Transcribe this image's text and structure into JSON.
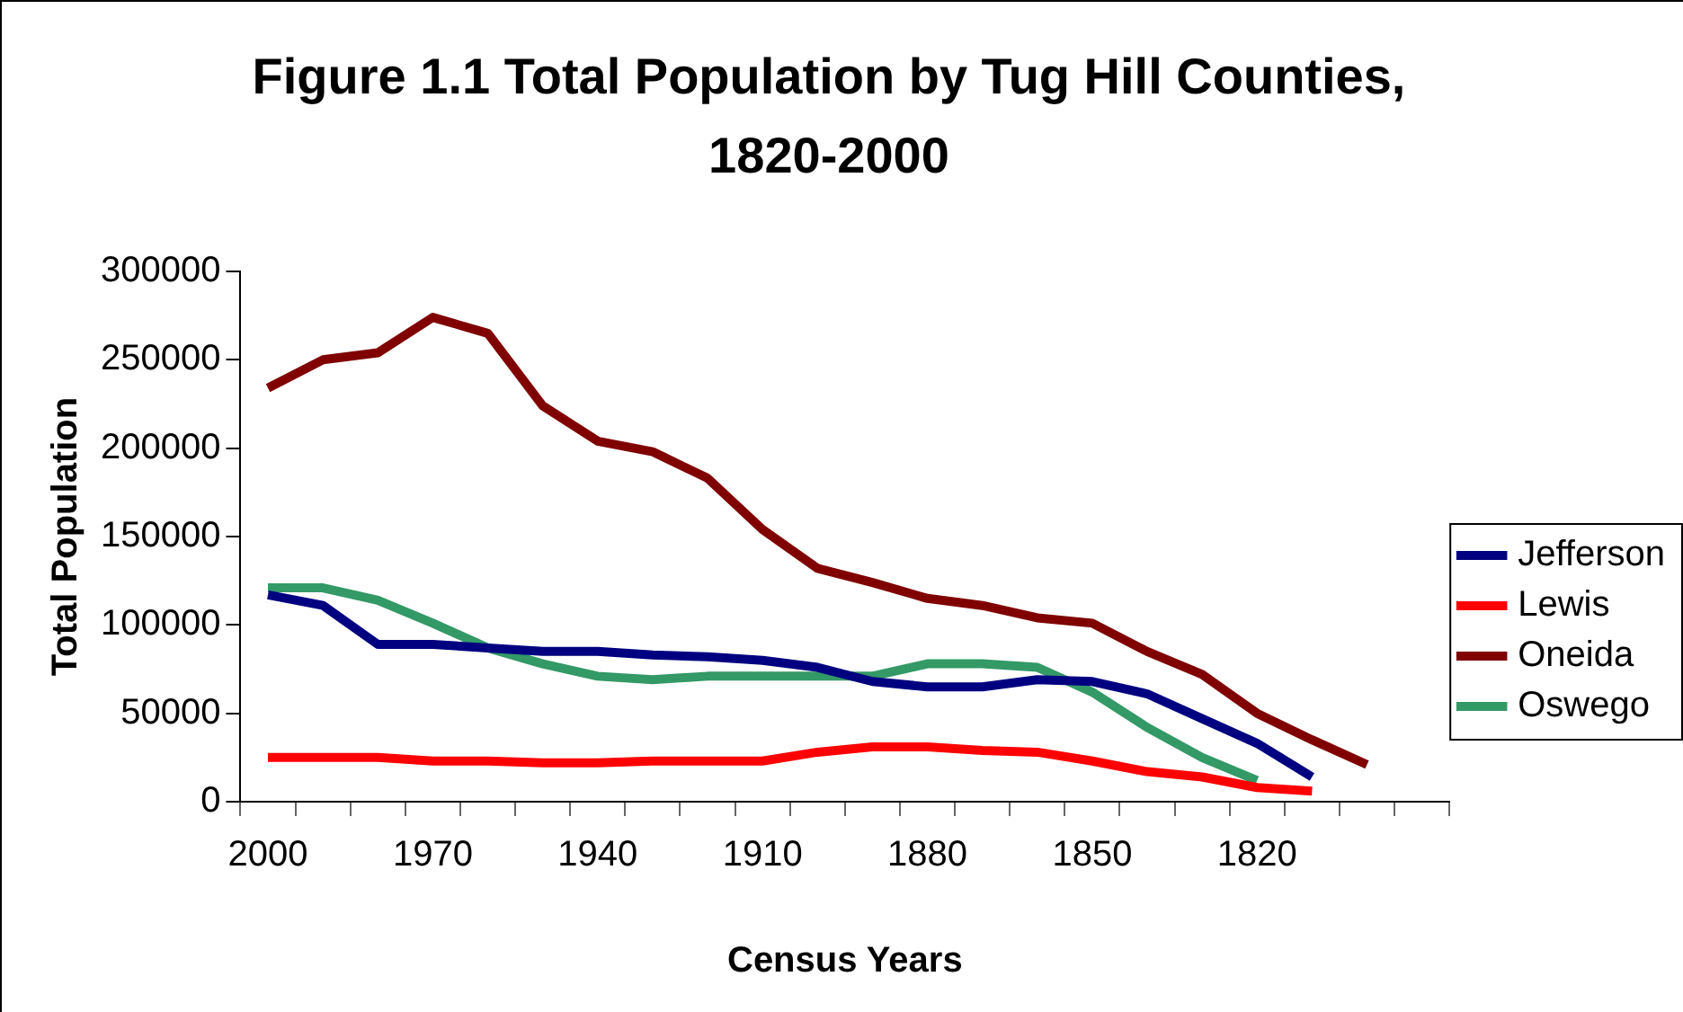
{
  "chart_data": {
    "type": "line",
    "title": "Figure 1.1 Total Population by Tug Hill Counties, 1820-2000",
    "xlabel": "Census Years",
    "ylabel": "Total Population",
    "categories": [
      "2000",
      null,
      null,
      "1970",
      null,
      null,
      "1940",
      null,
      null,
      "1910",
      null,
      null,
      "1880",
      null,
      null,
      "1850",
      null,
      null,
      "1820",
      null,
      null,
      null
    ],
    "series": [
      {
        "name": "Jefferson",
        "color": "#000080",
        "values": [
          117000,
          111000,
          89000,
          89000,
          87000,
          85000,
          85000,
          83000,
          82000,
          80000,
          76000,
          68000,
          65000,
          65000,
          69000,
          68000,
          61000,
          47000,
          33000,
          14000,
          null,
          null
        ]
      },
      {
        "name": "Lewis",
        "color": "#ff0000",
        "values": [
          25000,
          25000,
          25000,
          23000,
          23000,
          22000,
          22000,
          23000,
          23000,
          23000,
          28000,
          31000,
          31000,
          29000,
          28000,
          23000,
          17000,
          14000,
          8000,
          6000,
          null,
          null
        ]
      },
      {
        "name": "Oneida",
        "color": "#800000",
        "values": [
          234000,
          250000,
          254000,
          274000,
          265000,
          224000,
          204000,
          198000,
          183000,
          154000,
          132000,
          124000,
          115000,
          111000,
          104000,
          101000,
          85000,
          72000,
          50000,
          35000,
          21000,
          null
        ]
      },
      {
        "name": "Oswego",
        "color": "#339966",
        "values": [
          121000,
          121000,
          114000,
          101000,
          87000,
          78000,
          71000,
          69000,
          71000,
          71000,
          71000,
          71000,
          78000,
          78000,
          76000,
          62000,
          42000,
          25000,
          12000,
          null,
          null,
          null
        ]
      }
    ],
    "ylim": [
      0,
      300000
    ],
    "yticks": [
      0,
      50000,
      100000,
      150000,
      200000,
      250000,
      300000
    ],
    "grid": false,
    "legend": "right",
    "marker": "none"
  }
}
